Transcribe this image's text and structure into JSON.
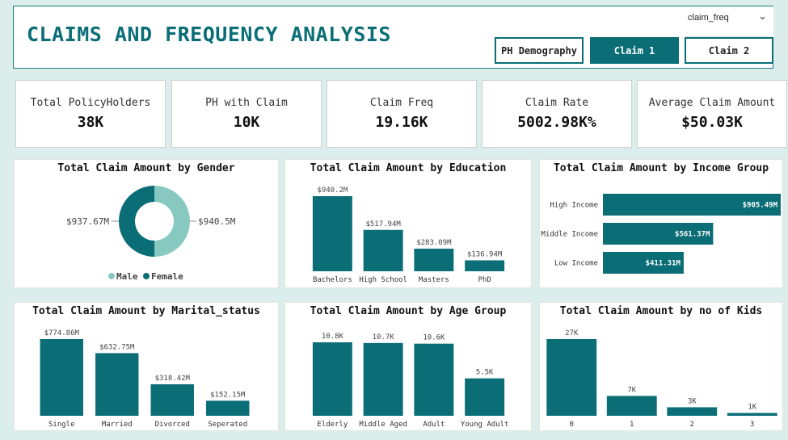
{
  "header": {
    "title": "CLAIMS AND FREQUENCY ANALYSIS",
    "dropdown_value": "claim_freq",
    "nav": [
      {
        "label": "PH Demography",
        "active": false
      },
      {
        "label": "Claim 1",
        "active": true
      },
      {
        "label": "Claim 2",
        "active": false
      }
    ]
  },
  "kpis": [
    {
      "label": "Total PolicyHolders",
      "value": "38K"
    },
    {
      "label": "PH with Claim",
      "value": "10K"
    },
    {
      "label": "Claim Freq",
      "value": "19.16K"
    },
    {
      "label": "Claim Rate",
      "value": "5002.98K%"
    },
    {
      "label": "Average Claim Amount",
      "value": "$50.03K"
    }
  ],
  "colors": {
    "primary": "#0b6e76",
    "secondary": "#87c9c0"
  },
  "chart_data": [
    {
      "type": "pie",
      "title": "Total Claim Amount by Gender",
      "categories": [
        "Male",
        "Female"
      ],
      "values": [
        937.67,
        940.5
      ],
      "labels": [
        "$937.67M",
        "$940.5M"
      ],
      "colors": [
        "#87c9c0",
        "#0b6e76"
      ],
      "legend": "bottom"
    },
    {
      "type": "bar",
      "title": "Total Claim Amount by Education",
      "categories": [
        "Bachelors",
        "High School",
        "Masters",
        "PhD"
      ],
      "values": [
        940.2,
        517.94,
        283.09,
        136.94
      ],
      "labels": [
        "$940.2M",
        "$517.94M",
        "$283.09M",
        "$136.94M"
      ]
    },
    {
      "type": "bar",
      "orientation": "horizontal",
      "title": "Total Claim Amount by Income Group",
      "categories": [
        "High Income",
        "Middle Income",
        "Low Income"
      ],
      "values": [
        905.49,
        561.37,
        411.31
      ],
      "labels": [
        "$905.49M",
        "$561.37M",
        "$411.31M"
      ]
    },
    {
      "type": "bar",
      "title": "Total Claim Amount by Marital_status",
      "categories": [
        "Single",
        "Married",
        "Divorced",
        "Seperated"
      ],
      "values": [
        774.86,
        632.75,
        318.42,
        152.15
      ],
      "labels": [
        "$774.86M",
        "$632.75M",
        "$318.42M",
        "$152.15M"
      ]
    },
    {
      "type": "bar",
      "title": "Total Claim Amount by Age Group",
      "categories": [
        "Elderly",
        "Middle Aged",
        "Adult",
        "Young Adult"
      ],
      "values": [
        10.8,
        10.7,
        10.6,
        5.5
      ],
      "labels": [
        "10.8K",
        "10.7K",
        "10.6K",
        "5.5K"
      ]
    },
    {
      "type": "bar",
      "title": "Total Claim Amount by no of Kids",
      "categories": [
        "0",
        "1",
        "2",
        "3"
      ],
      "values": [
        27,
        7,
        3,
        1
      ],
      "labels": [
        "27K",
        "7K",
        "3K",
        "1K"
      ]
    }
  ]
}
